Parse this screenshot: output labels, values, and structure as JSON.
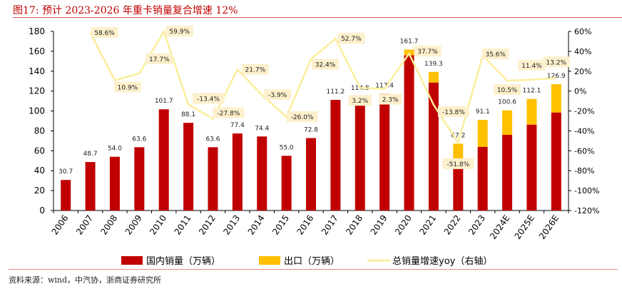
{
  "title": "图17:  预计 2023-2026 年重卡销量复合增速 12%",
  "source": "资料来源：wind，中汽协，浙商证券研究所",
  "colors": {
    "domestic": "#c00000",
    "export": "#ffc000",
    "yoy": "#fbee9c",
    "label_bg": "#fdf0cc"
  },
  "chart_data": {
    "type": "bar",
    "title": "预计 2023-2026 年重卡销量复合增速 12%",
    "categories": [
      "2006",
      "2007",
      "2008",
      "2009",
      "2010",
      "2011",
      "2012",
      "2013",
      "2014",
      "2015",
      "2016",
      "2017",
      "2018",
      "2019",
      "2020",
      "2021",
      "2022",
      "2023",
      "2024E",
      "2025E",
      "2026E"
    ],
    "totals": [
      30.7,
      48.7,
      54.0,
      63.6,
      101.7,
      88.1,
      63.6,
      77.4,
      74.4,
      55.0,
      72.8,
      111.2,
      114.8,
      117.4,
      161.7,
      139.3,
      67.2,
      91.1,
      100.6,
      112.1,
      126.9
    ],
    "total_labels": [
      "30.7",
      "48.7",
      "54.0",
      "63.6",
      "101.7",
      "88.1",
      "63.6",
      "77.4",
      "74.4",
      "55.0",
      "72.8",
      "111.2",
      "114.8",
      "117.4",
      "161.7",
      "139.3",
      "67.2",
      "91.1",
      "100.6",
      "112.1",
      "126.9"
    ],
    "series": [
      {
        "name": "国内销量（万辆）",
        "type": "bar",
        "axis": "left",
        "values": [
          30.7,
          48.7,
          54.0,
          63.6,
          101.7,
          88.1,
          63.6,
          77.4,
          74.4,
          55.0,
          72.8,
          111.2,
          114.8,
          117.4,
          156,
          128.6,
          50.2,
          64,
          76,
          86.3,
          98.5
        ]
      },
      {
        "name": "出口（万辆）",
        "type": "bar",
        "axis": "left",
        "values": [
          0,
          0,
          0,
          0,
          0,
          0,
          0,
          0,
          0,
          0,
          0,
          0,
          0,
          0,
          5.7,
          10.7,
          17,
          27.1,
          24.6,
          25.8,
          28.4
        ]
      },
      {
        "name": "总销量增速yoy（右轴）",
        "type": "line",
        "axis": "right",
        "values": [
          null,
          58.6,
          10.9,
          17.7,
          59.9,
          -13.4,
          -27.8,
          21.7,
          -3.9,
          -26.0,
          32.4,
          52.7,
          3.2,
          2.3,
          37.7,
          -13.8,
          -51.8,
          35.6,
          10.5,
          11.4,
          13.2
        ],
        "labels": [
          null,
          "58.6%",
          "10.9%",
          "17.7%",
          "59.9%",
          "-13.4%",
          "-27.8%",
          "21.7%",
          "-3.9%",
          "-26.0%",
          "32.4%",
          "52.7%",
          "3.2%",
          "2.3%",
          "37.7%",
          "-13.8%",
          "-51.8%",
          "35.6%",
          "10.5%",
          "11.4%",
          "13.2%"
        ]
      }
    ],
    "left_axis": {
      "ylim": [
        0,
        180
      ],
      "ticks": [
        "0",
        "20",
        "40",
        "60",
        "80",
        "100",
        "120",
        "140",
        "160",
        "180"
      ]
    },
    "right_axis": {
      "ylim": [
        -120,
        60
      ],
      "ticks": [
        "-120%",
        "-100%",
        "-80%",
        "-60%",
        "-40%",
        "-20%",
        "0%",
        "20%",
        "40%",
        "60%"
      ]
    },
    "legend_position": "bottom",
    "grid": false
  }
}
